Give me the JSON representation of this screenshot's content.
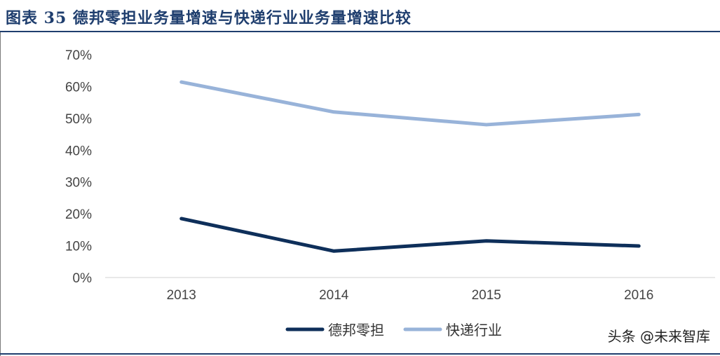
{
  "figure": {
    "title": "图表 35   德邦零担业务量增速与快递行业业务量增速比较"
  },
  "watermark": "头条 @未来智库",
  "chart_data": {
    "type": "line",
    "categories": [
      "2013",
      "2014",
      "2015",
      "2016"
    ],
    "series": [
      {
        "name": "德邦零担",
        "values": [
          0.185,
          0.083,
          0.115,
          0.099
        ],
        "color": "#0e2f5a"
      },
      {
        "name": "快递行业",
        "values": [
          0.614,
          0.52,
          0.48,
          0.512
        ],
        "color": "#98b3d9"
      }
    ],
    "y_ticks": [
      "0%",
      "10%",
      "20%",
      "30%",
      "40%",
      "50%",
      "60%",
      "70%"
    ],
    "ylim": [
      0,
      0.7
    ],
    "grid": false,
    "legend_position": "bottom-center"
  }
}
